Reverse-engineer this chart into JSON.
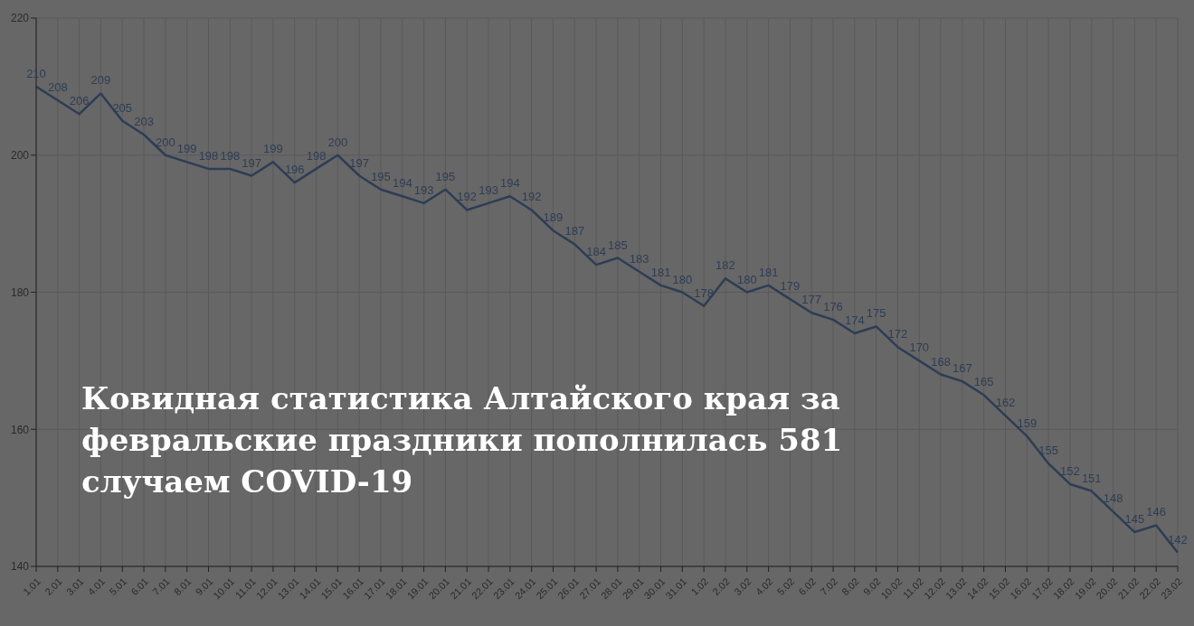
{
  "chart_data": {
    "type": "line",
    "title": "Ковидная статистика Алтайского края за февральские праздники пополнилась 581 случаем COVID-19",
    "categories": [
      "1.01",
      "2.01",
      "3.01",
      "4.01",
      "5.01",
      "6.01",
      "7.01",
      "8.01",
      "9.01",
      "10.01",
      "11.01",
      "12.01",
      "13.01",
      "14.01",
      "15.01",
      "16.01",
      "17.01",
      "18.01",
      "19.01",
      "20.01",
      "21.01",
      "22.01",
      "23.01",
      "24.01",
      "25.01",
      "26.01",
      "27.01",
      "28.01",
      "29.01",
      "30.01",
      "31.01",
      "1.02",
      "2.02",
      "3.02",
      "4.02",
      "5.02",
      "6.02",
      "7.02",
      "8.02",
      "9.02",
      "10.02",
      "11.02",
      "12.02",
      "13.02",
      "14.02",
      "15.02",
      "16.02",
      "17.02",
      "18.02",
      "19.02",
      "20.02",
      "21.02",
      "22.02",
      "23.02"
    ],
    "series": [
      {
        "color": "#2e3d55",
        "values": [
          210,
          208,
          206,
          209,
          205,
          203,
          200,
          199,
          198,
          198,
          197,
          199,
          196,
          198,
          200,
          197,
          195,
          194,
          193,
          195,
          192,
          193,
          194,
          192,
          189,
          187,
          184,
          185,
          183,
          181,
          180,
          178,
          182,
          180,
          181,
          179,
          177,
          176,
          174,
          175,
          172,
          170,
          168,
          167,
          165,
          162,
          159,
          155,
          152,
          151,
          148,
          145,
          146,
          142
        ]
      }
    ],
    "ylim": [
      140,
      220
    ],
    "yticks": [
      140,
      160,
      180,
      200,
      220
    ],
    "grid": true,
    "data_labels": true,
    "marker": "none",
    "line_style": "solid"
  }
}
